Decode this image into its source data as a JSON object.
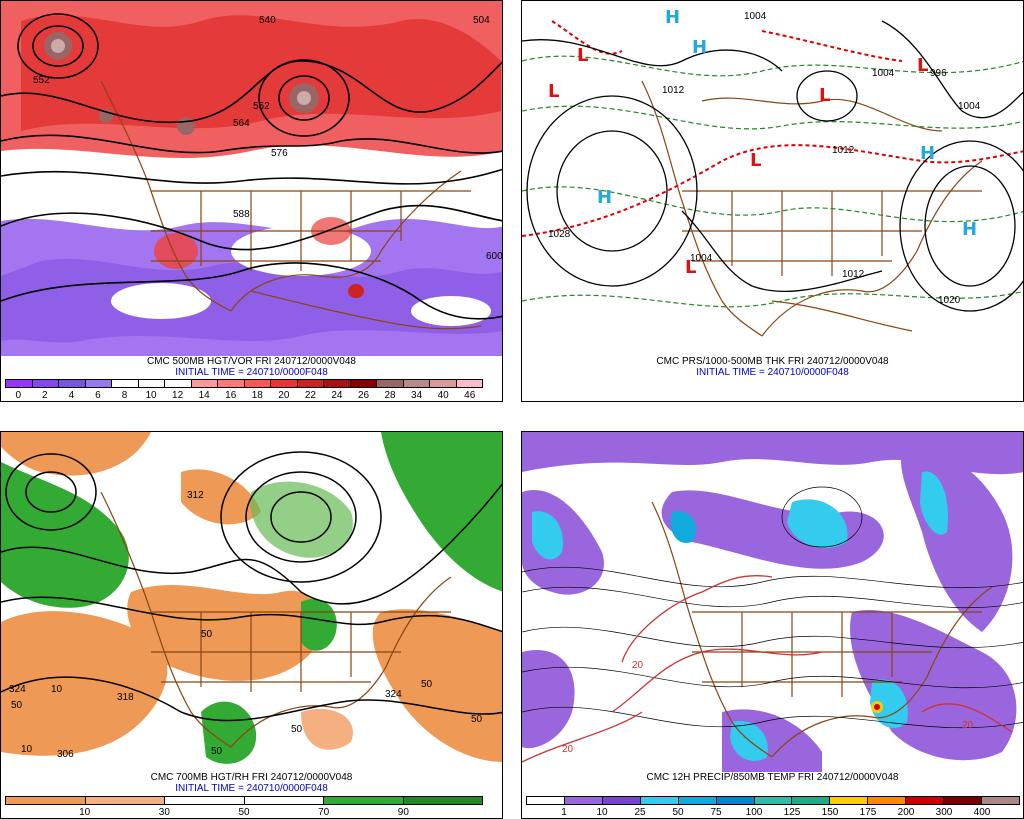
{
  "panels": [
    {
      "id": "p1",
      "title": "CMC 500MB HGT/VOR FRI 240712/0000V048",
      "init": "INITIAL TIME = 240710/0000F048",
      "colorbar": {
        "ticks": [
          "0",
          "2",
          "4",
          "6",
          "8",
          "10",
          "12",
          "14",
          "16",
          "18",
          "20",
          "22",
          "24",
          "26",
          "28",
          "34",
          "40",
          "46"
        ],
        "colors": [
          "#9933ff",
          "#8844ee",
          "#7755dd",
          "#9977ee",
          "#ffffff",
          "#ffffff",
          "#ffffff",
          "#ff9999",
          "#ff7777",
          "#ff5555",
          "#ee3333",
          "#cc2222",
          "#aa1111",
          "#880000",
          "#996666",
          "#bb8888",
          "#dd9999",
          "#ffbbcc"
        ]
      },
      "contour_labels": [
        "552",
        "540",
        "552",
        "576",
        "588",
        "600",
        "564",
        "504"
      ]
    },
    {
      "id": "p2",
      "title": "CMC PRS/1000-500MB THK FRI 240712/0000V048",
      "init": "INITIAL TIME = 240710/0000F048",
      "contour_labels": [
        "1004",
        "1012",
        "1028",
        "1004",
        "1012",
        "1020",
        "1004",
        "996",
        "1012",
        "1004"
      ],
      "highs": [
        "H",
        "H",
        "H",
        "H",
        "H"
      ],
      "lows": [
        "L",
        "L",
        "L",
        "L",
        "L",
        "L"
      ]
    },
    {
      "id": "p3",
      "title": "CMC 700MB HGT/RH FRI 240712/0000V048",
      "init": "INITIAL TIME = 240710/0000F048",
      "colorbar": {
        "ticks": [
          "10",
          "30",
          "50",
          "70",
          "90"
        ],
        "colors": [
          "#ee9955",
          "#f4b080",
          "#ffffff",
          "#ffffff",
          "#33aa33",
          "#228822"
        ]
      },
      "contour_labels": [
        "306",
        "318",
        "324",
        "50",
        "10",
        "50",
        "50",
        "10",
        "324",
        "50",
        "50",
        "312",
        "50"
      ]
    },
    {
      "id": "p4",
      "title": "CMC 12H PRECIP/850MB TEMP FRI 240712/0000V048",
      "init": "",
      "colorbar": {
        "ticks": [
          "1",
          "10",
          "25",
          "50",
          "75",
          "100",
          "125",
          "150",
          "175",
          "200",
          "300",
          "400"
        ],
        "colors": [
          "#ffffff",
          "#9966dd",
          "#7744cc",
          "#33ccee",
          "#11aadd",
          "#0088cc",
          "#33bbaa",
          "#22aa88",
          "#ffcc00",
          "#ff8800",
          "#cc0000",
          "#770000",
          "#aa8888"
        ]
      },
      "contour_labels": [
        "20",
        "20",
        "20"
      ]
    }
  ]
}
